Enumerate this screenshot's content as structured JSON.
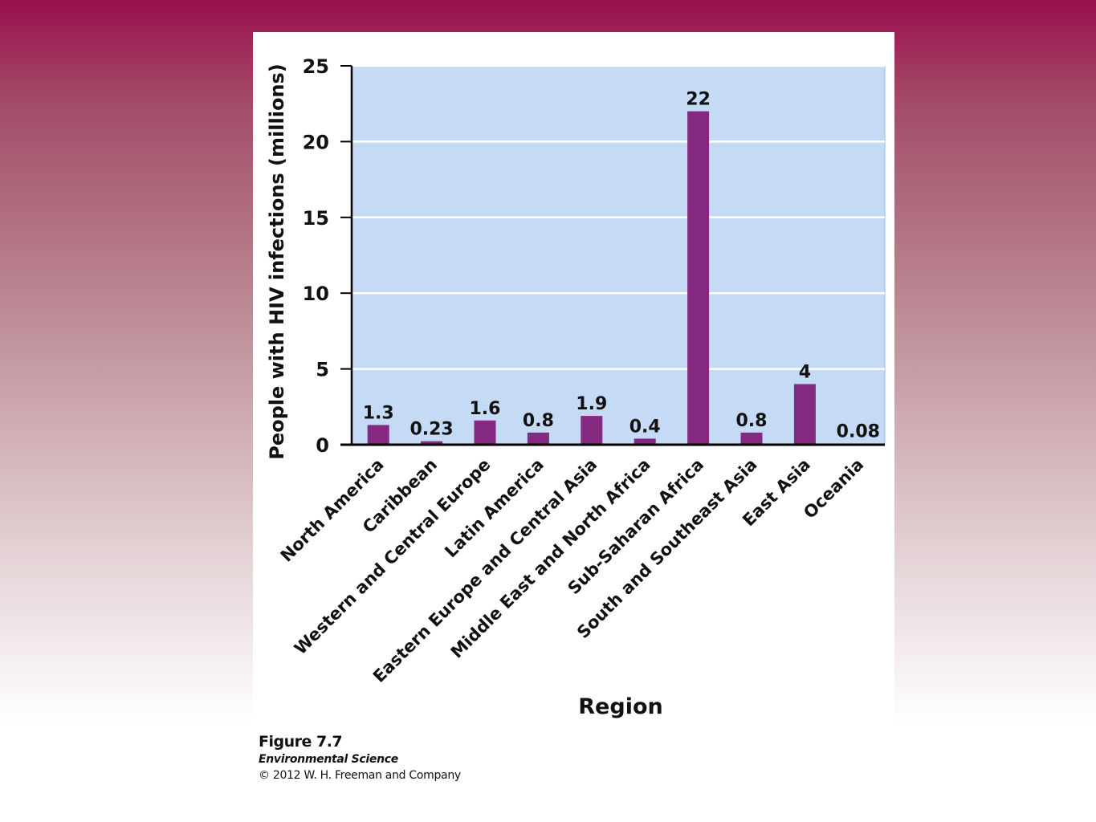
{
  "figure": {
    "number": "Figure 7.7",
    "book": "Environmental Science",
    "copyright": "© 2012 W. H. Freeman and Company"
  },
  "colors": {
    "plot_background": "#c5daf4",
    "bar": "#84297f",
    "gridline": "#ffffff",
    "axis": "#000000"
  },
  "chart_data": {
    "type": "bar",
    "title": "",
    "xlabel": "Region",
    "ylabel": "People with HIV infections (millions)",
    "categories": [
      "North America",
      "Caribbean",
      "Western and Central Europe",
      "Latin America",
      "Eastern Europe and Central Asia",
      "Middle East and North Africa",
      "Sub-Saharan Africa",
      "South and Southeast Asia",
      "East Asia",
      "Oceania"
    ],
    "values": [
      1.3,
      0.23,
      1.6,
      0.8,
      1.9,
      0.4,
      22,
      0.8,
      4,
      0.08
    ],
    "value_labels": [
      "1.3",
      "0.23",
      "1.6",
      "0.8",
      "1.9",
      "0.4",
      "22",
      "0.8",
      "4",
      "0.08"
    ],
    "ylim": [
      0,
      25
    ],
    "yticks": [
      0,
      5,
      10,
      15,
      20,
      25
    ],
    "grid": true,
    "legend": "none"
  }
}
